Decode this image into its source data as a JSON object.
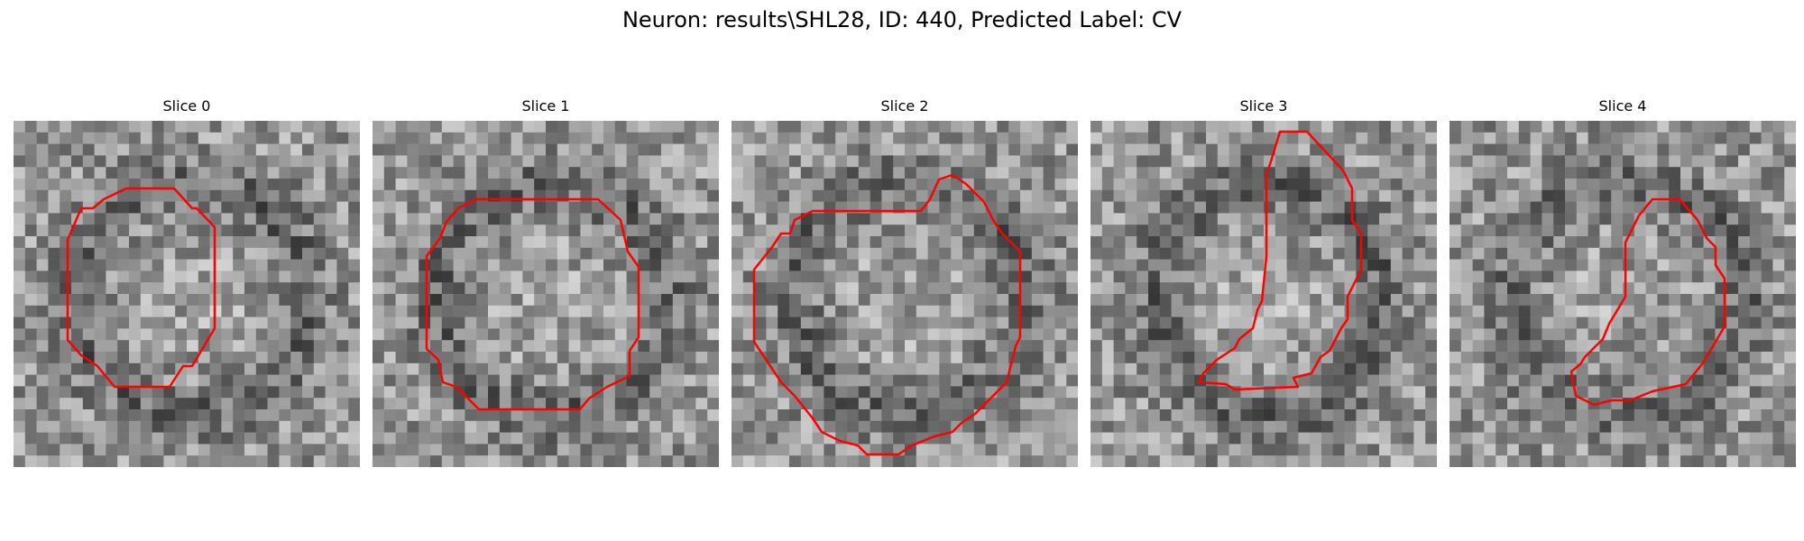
{
  "figure": {
    "title": "Neuron: results\\SHL28, ID: 440, Predicted Label: CV"
  },
  "slices": [
    {
      "title": "Slice 0"
    },
    {
      "title": "Slice 1"
    },
    {
      "title": "Slice 2"
    },
    {
      "title": "Slice 3"
    },
    {
      "title": "Slice 4"
    }
  ],
  "colors": {
    "contour": "#ff0000",
    "background": "#ffffff"
  },
  "colormap": "gray"
}
